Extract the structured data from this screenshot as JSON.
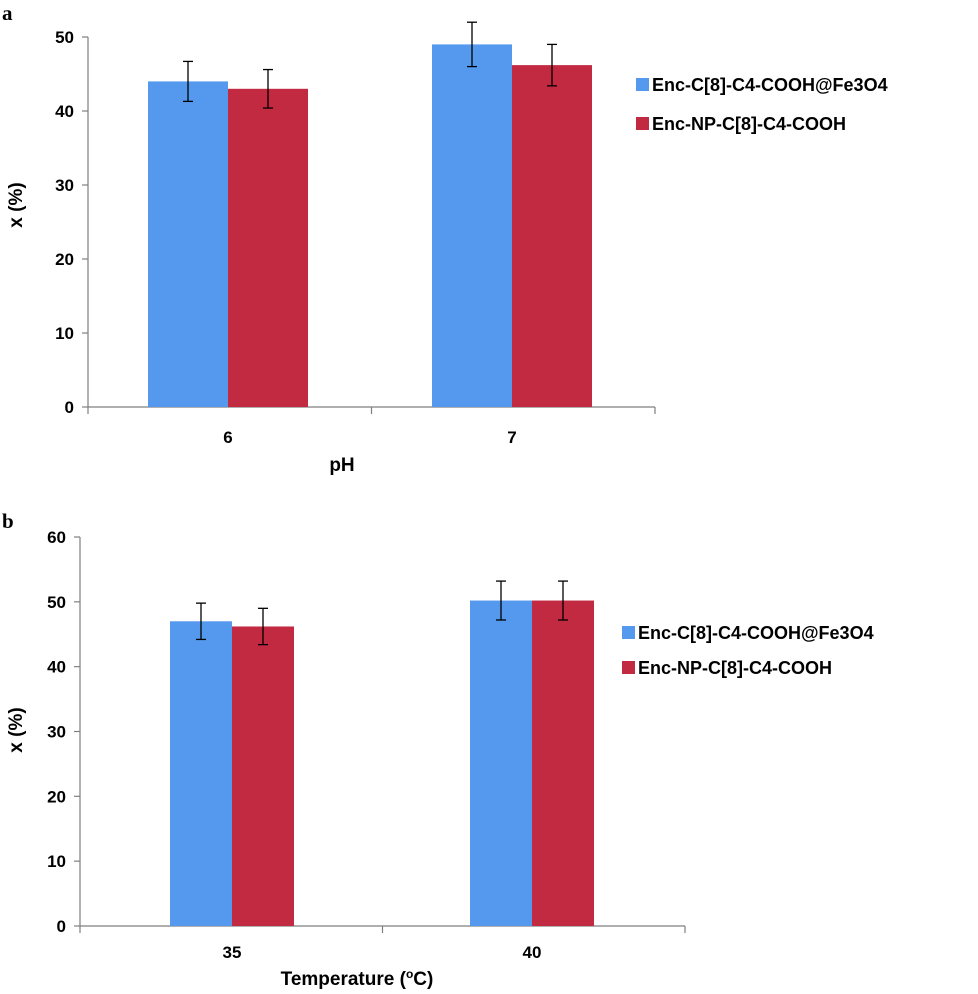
{
  "chart_data": [
    {
      "type": "bar",
      "panel_label": "a",
      "categories": [
        "6",
        "7"
      ],
      "series": [
        {
          "name": "Enc-C[8]-C4-COOH@Fe3O4",
          "color": "#5599ee",
          "values": [
            44,
            49
          ],
          "errors": [
            2.7,
            3.0
          ]
        },
        {
          "name": "Enc-NP-C[8]-C4-COOH",
          "color": "#c22a42",
          "values": [
            43,
            46.2
          ],
          "errors": [
            2.6,
            2.8
          ]
        }
      ],
      "xlabel": "pH",
      "ylabel": "x (%)",
      "ylim": [
        0,
        50
      ],
      "yticks": [
        0,
        10,
        20,
        30,
        40,
        50
      ],
      "grid": false,
      "legend": "right"
    },
    {
      "type": "bar",
      "panel_label": "b",
      "categories": [
        "35",
        "40"
      ],
      "series": [
        {
          "name": "Enc-C[8]-C4-COOH@Fe3O4",
          "color": "#5599ee",
          "values": [
            47,
            50.2
          ],
          "errors": [
            2.8,
            3.0
          ]
        },
        {
          "name": "Enc-NP-C[8]-C4-COOH",
          "color": "#c22a42",
          "values": [
            46.2,
            50.2
          ],
          "errors": [
            2.8,
            3.0
          ]
        }
      ],
      "xlabel": "Temperature (",
      "xlabel_sup": "o",
      "xlabel_suffix": "C)",
      "ylabel": "x (%)",
      "ylim": [
        0,
        60
      ],
      "yticks": [
        0,
        10,
        20,
        30,
        40,
        50,
        60
      ],
      "grid": false,
      "legend": "right"
    }
  ]
}
